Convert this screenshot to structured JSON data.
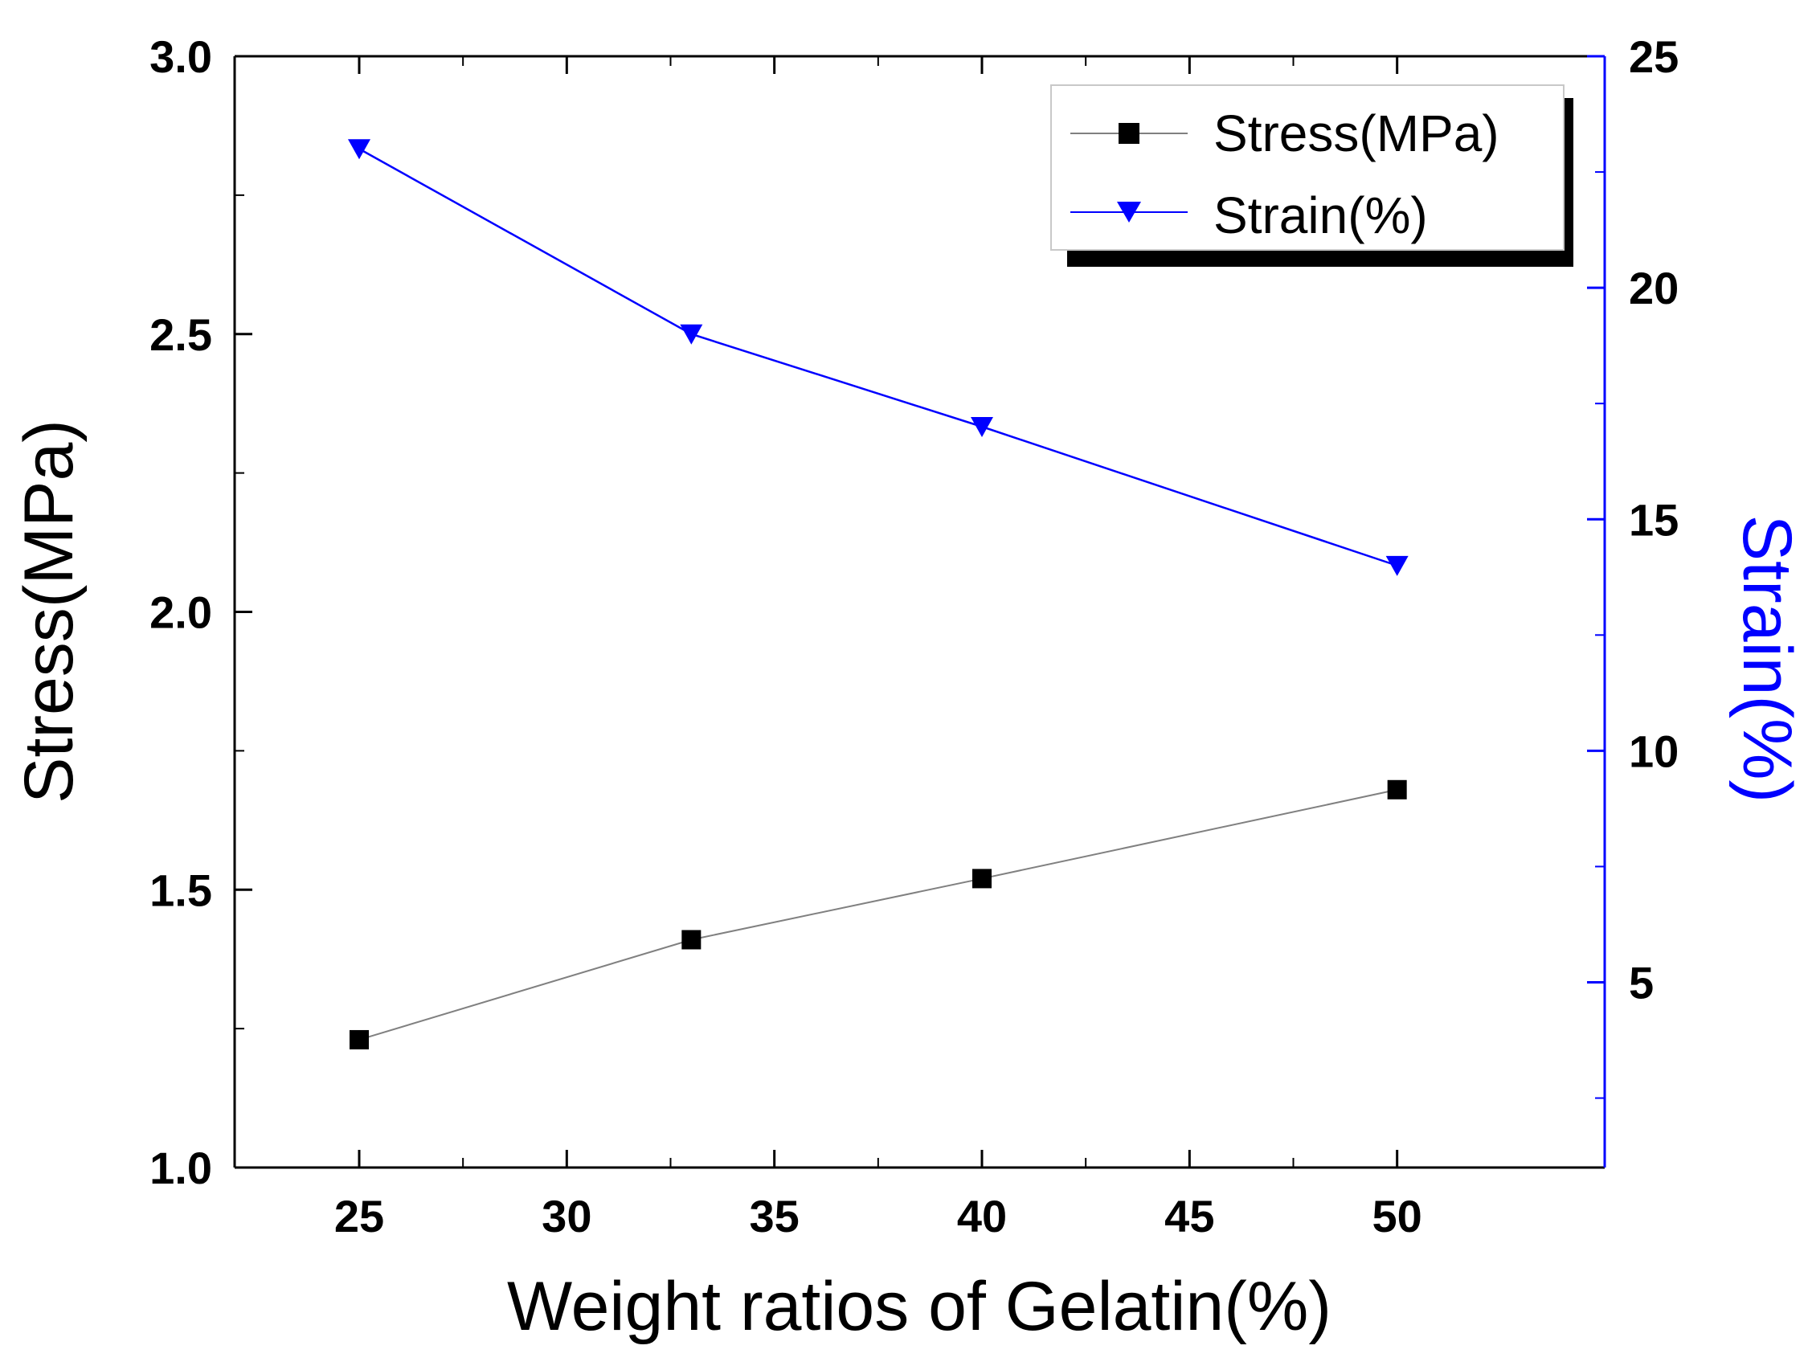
{
  "chart_data": {
    "type": "line",
    "xlabel": "Weight ratios of Gelatin(%)",
    "ylabel": "Stress(MPa)",
    "y2label": "Strain(%)",
    "xlim": [
      22,
      55
    ],
    "ylim": [
      1.0,
      3.0
    ],
    "y2lim": [
      1,
      25
    ],
    "x_ticks": [
      25,
      30,
      35,
      40,
      45,
      50
    ],
    "y_ticks": [
      1.0,
      1.5,
      2.0,
      2.5,
      3.0
    ],
    "y2_ticks": [
      5,
      10,
      15,
      20,
      25
    ],
    "grid": false,
    "legend_position": "top-right",
    "series": [
      {
        "name": "Stress(MPa)",
        "axis": "left",
        "marker": "square",
        "color": "#000000",
        "line_color": "#808080",
        "x": [
          25,
          33,
          40,
          50
        ],
        "y": [
          1.23,
          1.41,
          1.52,
          1.68
        ]
      },
      {
        "name": "Strain(%)",
        "axis": "right",
        "marker": "triangle-down",
        "color": "#0000ff",
        "line_color": "#0000ff",
        "x": [
          25,
          33,
          40,
          50
        ],
        "y": [
          23,
          19,
          17,
          14
        ]
      }
    ]
  },
  "colors": {
    "left_axis": "#000000",
    "right_axis": "#0000ff"
  }
}
